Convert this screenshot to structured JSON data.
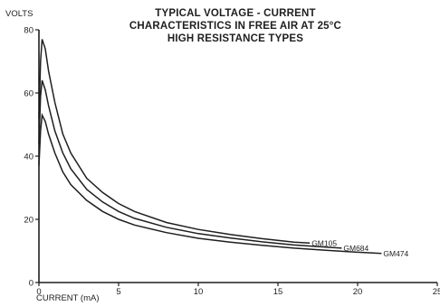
{
  "chart_data": {
    "type": "line",
    "title_lines": [
      "TYPICAL VOLTAGE - CURRENT",
      "CHARACTERISTICS IN FREE AIR AT 25°C",
      "HIGH RESISTANCE TYPES"
    ],
    "xlabel": "CURRENT (mA)",
    "ylabel": "VOLTS",
    "xlim": [
      0,
      25
    ],
    "ylim": [
      0,
      80
    ],
    "xticks": [
      0,
      5,
      10,
      15,
      20,
      25
    ],
    "yticks": [
      0,
      20,
      40,
      60,
      80
    ],
    "xtick_labels": [
      "0",
      "5",
      "10",
      "15",
      "20",
      "25"
    ],
    "ytick_labels": [
      "0",
      "20",
      "40",
      "60",
      "80"
    ],
    "grid": false,
    "legend": "none",
    "series": [
      {
        "name": "GM105",
        "x": [
          0.0,
          0.1,
          0.2,
          0.4,
          0.6,
          1,
          1.5,
          2,
          3,
          4,
          5,
          6,
          8,
          10,
          12,
          14,
          16,
          17
        ],
        "y": [
          52,
          70,
          77,
          74,
          67,
          57,
          47,
          41,
          33,
          28.5,
          25,
          22.5,
          19,
          16.8,
          15.2,
          13.9,
          12.8,
          12.5
        ]
      },
      {
        "name": "GM684",
        "x": [
          0.0,
          0.1,
          0.2,
          0.4,
          0.6,
          1,
          1.5,
          2,
          3,
          4,
          5,
          6,
          8,
          10,
          12,
          14,
          16,
          18,
          19
        ],
        "y": [
          44,
          59,
          64,
          61,
          56,
          48,
          41,
          36,
          29.5,
          25.5,
          22.5,
          20.3,
          17.5,
          15.5,
          14.1,
          12.9,
          11.9,
          11.2,
          10.9
        ]
      },
      {
        "name": "GM474",
        "x": [
          0.0,
          0.1,
          0.2,
          0.4,
          0.6,
          1,
          1.5,
          2,
          3,
          4,
          5,
          6,
          8,
          10,
          12,
          14,
          16,
          18,
          20,
          21.5
        ],
        "y": [
          37,
          48,
          53,
          51,
          47,
          41,
          35,
          31,
          26,
          22.5,
          20,
          18.2,
          15.8,
          14,
          12.8,
          11.8,
          10.9,
          10.2,
          9.6,
          9.2
        ]
      }
    ]
  }
}
